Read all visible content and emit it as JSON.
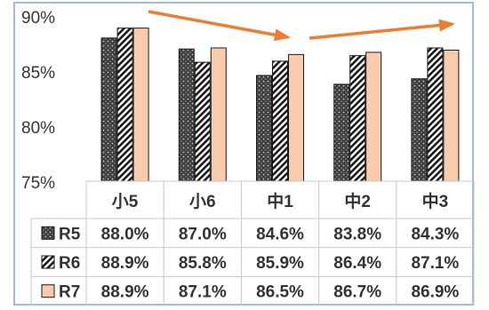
{
  "chart_data": {
    "type": "bar",
    "categories": [
      "小5",
      "小6",
      "中1",
      "中2",
      "中3"
    ],
    "series": [
      {
        "name": "R5",
        "values": [
          88.0,
          87.0,
          84.6,
          83.8,
          84.3
        ],
        "labels": [
          "88.0%",
          "87.0%",
          "84.6%",
          "83.8%",
          "84.3%"
        ],
        "pattern": "dots",
        "color": "#404040"
      },
      {
        "name": "R6",
        "values": [
          88.9,
          85.8,
          85.9,
          86.4,
          87.1
        ],
        "labels": [
          "88.9%",
          "85.8%",
          "85.9%",
          "86.4%",
          "87.1%"
        ],
        "pattern": "diagonal-stripes",
        "color": "#1a1a1a"
      },
      {
        "name": "R7",
        "values": [
          88.9,
          87.1,
          86.5,
          86.7,
          86.9
        ],
        "labels": [
          "88.9%",
          "87.1%",
          "86.5%",
          "86.7%",
          "86.9%"
        ],
        "pattern": "solid",
        "color": "#f8cbad"
      }
    ],
    "ylim": [
      75,
      90
    ],
    "yticks": [
      75,
      80,
      85,
      90
    ],
    "ytick_labels": [
      "75%",
      "80%",
      "85%",
      "90%"
    ],
    "grid": false,
    "legend_placement": "data-table",
    "annotation_arrow_color": "#ed7d31"
  }
}
